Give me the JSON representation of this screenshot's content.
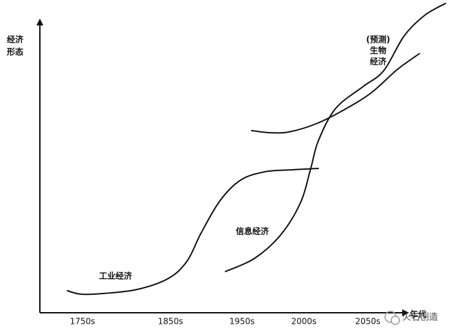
{
  "axis": {
    "y_label": [
      "经济",
      "形态"
    ],
    "x_label": "年代",
    "x_ticks": [
      "1750s",
      "1850s",
      "1950s",
      "2000s",
      "2050s"
    ]
  },
  "curves": [
    {
      "label": [
        "工业经济"
      ]
    },
    {
      "label": [
        "信息经济"
      ]
    },
    {
      "label": [
        "(预测)",
        "生物",
        "经济"
      ]
    }
  ],
  "watermark": "火石创造"
}
